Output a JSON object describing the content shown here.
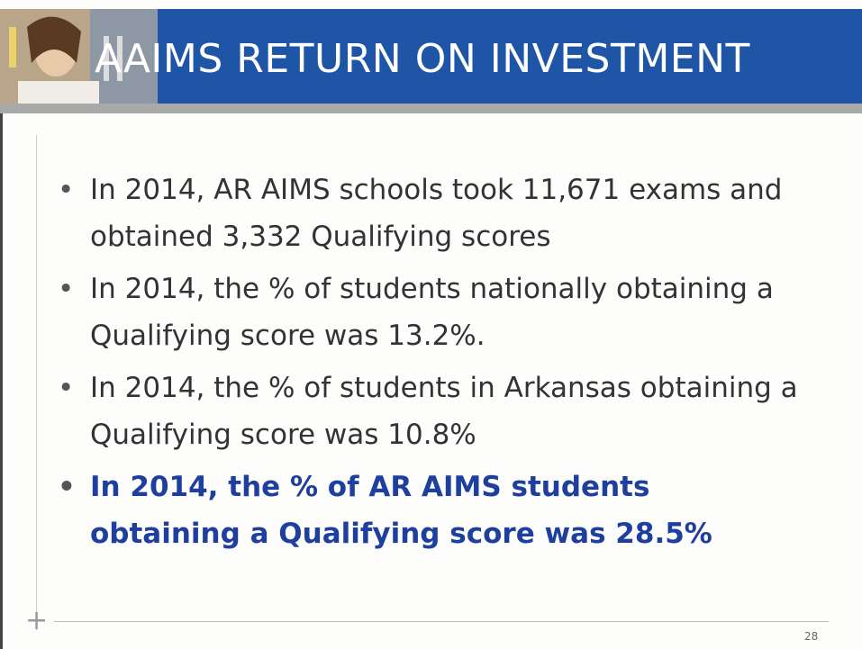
{
  "header": {
    "title": "AAIMS RETURN ON INVESTMENT"
  },
  "bullets": [
    "In 2014, AR AIMS schools took 11,671 exams and obtained 3,332 Qualifying scores",
    "In 2014, the % of students nationally obtaining a Qualifying score was 13.2%.",
    "In 2014, the % of students in Arkansas obtaining a Qualifying score was 10.8%",
    "In 2014, the % of AR AIMS students obtaining a Qualifying score was 28.5%"
  ],
  "footer": {
    "page_number": "28"
  }
}
